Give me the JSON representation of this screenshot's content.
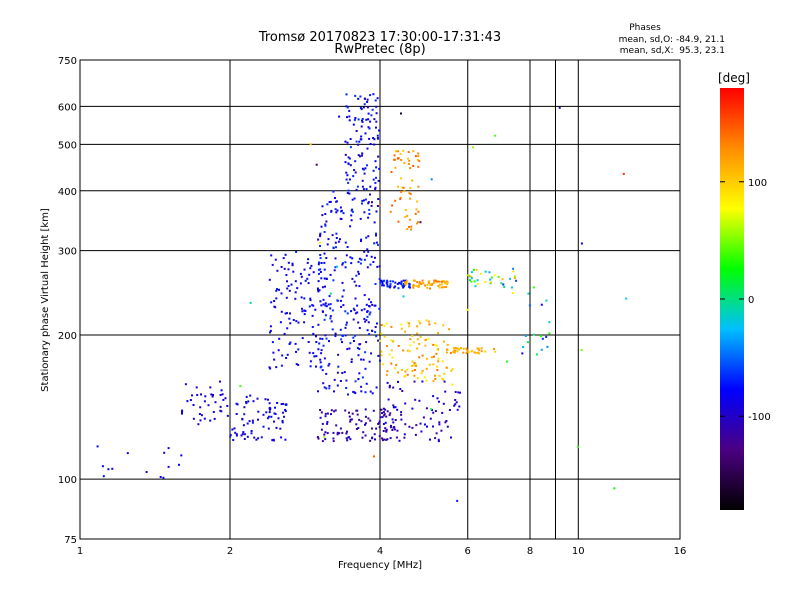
{
  "chart_data": {
    "type": "scatter",
    "title": "Tromsø 20170823 17:30:00-17:31:43",
    "subtitle": "RwPretec (8p)",
    "xlabel": "Frequency [MHz]",
    "ylabel": "Stationary phase Virtual Height [km]",
    "x_scale": "log2",
    "y_scale": "log",
    "xlim": [
      1,
      16
    ],
    "ylim": [
      75,
      750
    ],
    "x_ticks": [
      1,
      2,
      4,
      6,
      8,
      10,
      16
    ],
    "y_ticks": [
      75,
      100,
      200,
      300,
      400,
      500,
      600,
      750
    ],
    "grid": true,
    "phase_stats": {
      "heading": "Phases",
      "line_o": "mean, sd,O: -84.9, 21.1",
      "line_x": "mean, sd,X:  95.3, 23.1"
    },
    "colorbar": {
      "label": "[deg]",
      "range": [
        -180,
        180
      ],
      "ticks": [
        100,
        0,
        -100
      ],
      "colormap": [
        "#000000",
        "#4b0082",
        "#0000ff",
        "#00bfff",
        "#00ff00",
        "#ffff00",
        "#ff8c00",
        "#ff0000"
      ]
    },
    "clusters": [
      {
        "f0": 1.0,
        "f1": 1.6,
        "h0": 97,
        "h1": 120,
        "ph0": -95,
        "ph1": -75,
        "n": 14
      },
      {
        "f0": 1.6,
        "f1": 2.0,
        "h0": 130,
        "h1": 160,
        "ph0": -100,
        "ph1": -80,
        "n": 40
      },
      {
        "f0": 2.0,
        "f1": 2.6,
        "h0": 120,
        "h1": 150,
        "ph0": -100,
        "ph1": -70,
        "n": 80
      },
      {
        "f0": 2.4,
        "f1": 3.1,
        "h0": 170,
        "h1": 300,
        "ph0": -95,
        "ph1": -70,
        "n": 130
      },
      {
        "f0": 3.0,
        "f1": 4.0,
        "h0": 150,
        "h1": 400,
        "ph0": -100,
        "ph1": -60,
        "n": 280
      },
      {
        "f0": 3.4,
        "f1": 4.0,
        "h0": 400,
        "h1": 640,
        "ph0": -100,
        "ph1": -60,
        "n": 110
      },
      {
        "f0": 3.0,
        "f1": 4.5,
        "h0": 120,
        "h1": 140,
        "ph0": -125,
        "ph1": -95,
        "n": 110
      },
      {
        "f0": 4.0,
        "f1": 4.6,
        "h0": 250,
        "h1": 260,
        "ph0": -90,
        "ph1": -60,
        "n": 45
      },
      {
        "f0": 4.4,
        "f1": 5.5,
        "h0": 250,
        "h1": 260,
        "ph0": 100,
        "ph1": 140,
        "n": 60
      },
      {
        "f0": 4.2,
        "f1": 4.8,
        "h0": 330,
        "h1": 490,
        "ph0": 100,
        "ph1": 150,
        "n": 60
      },
      {
        "f0": 4.0,
        "f1": 5.6,
        "h0": 160,
        "h1": 215,
        "ph0": 80,
        "ph1": 140,
        "n": 110
      },
      {
        "f0": 5.4,
        "f1": 7.0,
        "h0": 183,
        "h1": 188,
        "ph0": 95,
        "ph1": 130,
        "n": 35
      },
      {
        "f0": 6.0,
        "f1": 7.6,
        "h0": 250,
        "h1": 275,
        "ph0": -80,
        "ph1": 120,
        "n": 35
      },
      {
        "f0": 7.6,
        "f1": 8.8,
        "h0": 180,
        "h1": 260,
        "ph0": -90,
        "ph1": 40,
        "n": 18
      },
      {
        "f0": 4.0,
        "f1": 5.8,
        "h0": 120,
        "h1": 160,
        "ph0": -120,
        "ph1": -80,
        "n": 70
      },
      {
        "f0": 2.0,
        "f1": 13.0,
        "h0": 85,
        "h1": 600,
        "ph0": -180,
        "ph1": 180,
        "n": 30
      }
    ]
  }
}
